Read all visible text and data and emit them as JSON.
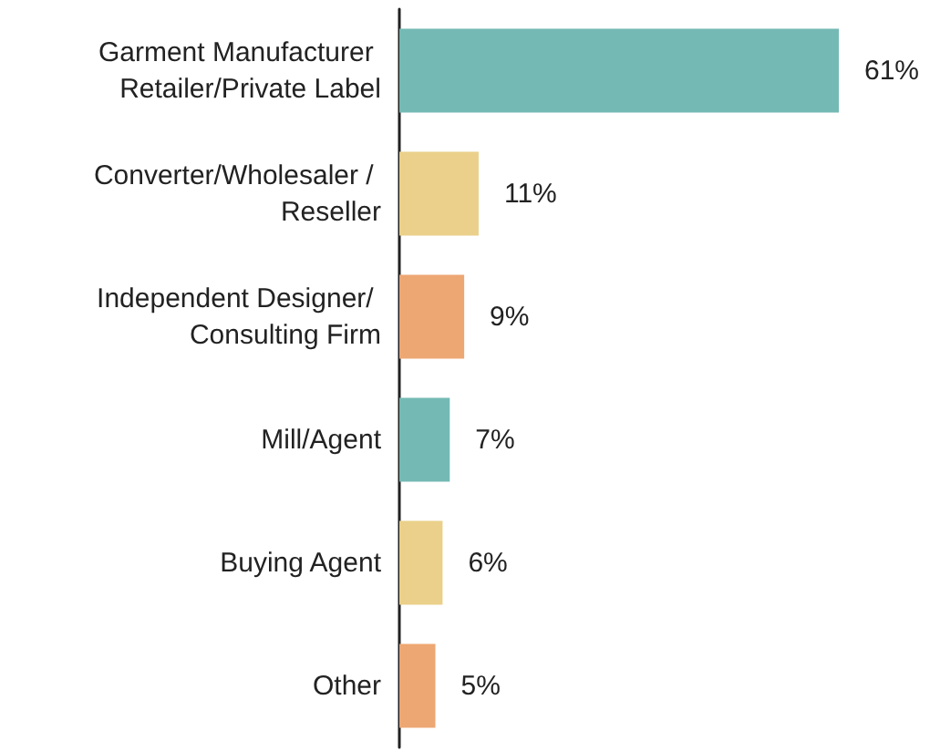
{
  "chart_data": {
    "type": "bar",
    "orientation": "horizontal",
    "categories": [
      "Garment Manufacturer Retailer/Private Label",
      "Converter/Wholesaler / Reseller",
      "Independent Designer/ Consulting Firm",
      "Mill/Agent",
      "Buying Agent",
      "Other"
    ],
    "values": [
      61,
      11,
      9,
      7,
      6,
      5
    ],
    "colors": [
      "#74b9b4",
      "#ead08a",
      "#eda773",
      "#74b9b4",
      "#ead08a",
      "#eda773"
    ],
    "value_labels": [
      "61%",
      "11%",
      "9%",
      "7%",
      "6%",
      "5%"
    ]
  }
}
